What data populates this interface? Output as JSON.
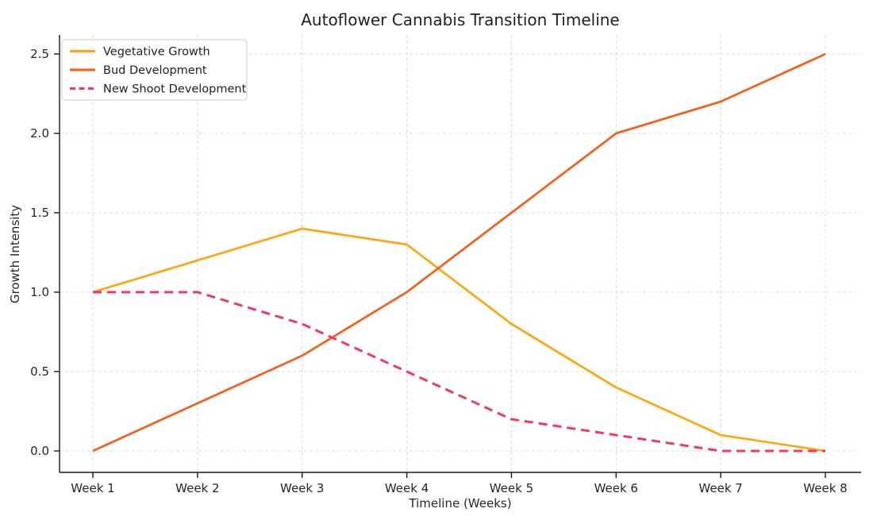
{
  "title": "Autoflower Cannabis Transition Timeline",
  "chart_data": {
    "type": "line",
    "title": "Autoflower Cannabis Transition Timeline",
    "xlabel": "Timeline (Weeks)",
    "ylabel": "Growth Intensity",
    "categories": [
      "Week 1",
      "Week 2",
      "Week 3",
      "Week 4",
      "Week 5",
      "Week 6",
      "Week 7",
      "Week 8"
    ],
    "series": [
      {
        "name": "Vegetative Growth",
        "color": "#FBA919",
        "style": "solid",
        "values": [
          1.0,
          1.2,
          1.4,
          1.3,
          0.8,
          0.4,
          0.1,
          0.0
        ]
      },
      {
        "name": "Bud Development",
        "color": "#F06423",
        "style": "solid",
        "values": [
          0.0,
          0.3,
          0.6,
          1.0,
          1.5,
          2.0,
          2.2,
          2.5
        ]
      },
      {
        "name": "New Shoot Development",
        "color": "#F23A5F",
        "style": "dashed",
        "values": [
          1.0,
          1.0,
          0.8,
          0.5,
          0.2,
          0.1,
          0.0,
          0.0
        ]
      }
    ],
    "yticks": [
      0.0,
      0.5,
      1.0,
      1.5,
      2.0,
      2.5
    ],
    "ylim": [
      -0.14,
      2.62
    ],
    "grid": true,
    "grid_style": "dashed",
    "legend_position": "upper left",
    "colors": {
      "grid": "#DBDBDB",
      "axis": "#1A1A1A",
      "text": "#262626",
      "background": "#FFFFFF"
    }
  }
}
